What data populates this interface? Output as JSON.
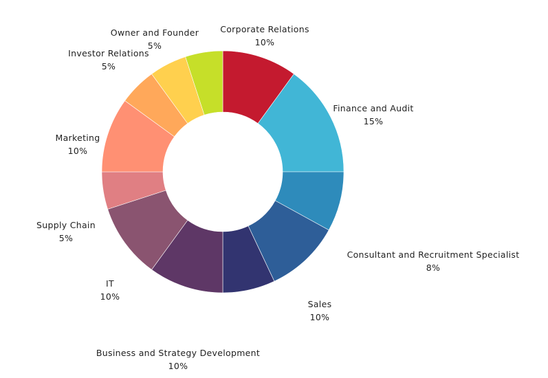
{
  "chart_data": {
    "type": "pie",
    "subtype": "donut",
    "title": "",
    "slices": [
      {
        "name": "Corporate Relations",
        "value": 10,
        "label": "10%",
        "color": "#C41A2F"
      },
      {
        "name": "Finance and Audit",
        "value": 15,
        "label": "15%",
        "color": "#41B6D6"
      },
      {
        "name": "Consultant and Recruitment Specialist",
        "value": 8,
        "label": "8%",
        "color": "#2E8BBB"
      },
      {
        "name": "Sales",
        "value": 10,
        "label": "10%",
        "color": "#2E5E98"
      },
      {
        "name": "",
        "value": 7,
        "label": "",
        "color": "#323470"
      },
      {
        "name": "Business and Strategy Development",
        "value": 10,
        "label": "10%",
        "color": "#5E3766"
      },
      {
        "name": "IT",
        "value": 10,
        "label": "10%",
        "color": "#8A5470"
      },
      {
        "name": "Supply Chain",
        "value": 5,
        "label": "5%",
        "color": "#E07F83"
      },
      {
        "name": "Marketing",
        "value": 10,
        "label": "10%",
        "color": "#FF9073"
      },
      {
        "name": "Investor Relations",
        "value": 5,
        "label": "5%",
        "color": "#FFA85A"
      },
      {
        "name": "Owner and Founder",
        "value": 5,
        "label": "5%",
        "color": "#FFD04E"
      },
      {
        "name": "",
        "value": 5,
        "label": "",
        "color": "#C6DF29"
      }
    ]
  }
}
